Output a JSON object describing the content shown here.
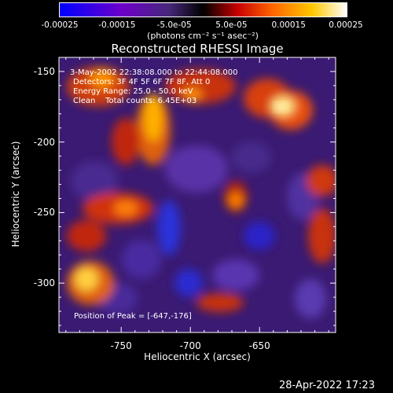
{
  "colorbar": {
    "tick_labels": [
      "-0.00025",
      "-0.00015",
      "-5.0e-05",
      "5.0e-05",
      "0.00015",
      "0.00025"
    ],
    "tick_values": [
      -0.00025,
      -0.00015,
      -5e-05,
      5e-05,
      0.00015,
      0.00025
    ],
    "range": [
      -0.00025,
      0.00025
    ],
    "units_label": "(photons cm⁻² s⁻¹ asec⁻²)"
  },
  "chart_data": {
    "type": "heatmap",
    "title": "Reconstructed RHESSI Image",
    "xlabel": "Heliocentric X (arcsec)",
    "ylabel": "Heliocentric Y (arcsec)",
    "xlim": [
      -795,
      -595
    ],
    "ylim": [
      -335,
      -140
    ],
    "x_ticks": [
      -750,
      -700,
      -650
    ],
    "x_tick_labels": [
      "-750",
      "-700",
      "-650"
    ],
    "y_ticks": [
      -150,
      -200,
      -250,
      -300
    ],
    "y_tick_labels": [
      "-150",
      "-200",
      "-250",
      "-300"
    ],
    "peak_position": [
      -647,
      -176
    ],
    "annotations": [
      "3-May-2002 22:38:08.000 to 22:44:08.000",
      "Detectors: 3F 4F 5F 6F 7F 8F, Att 0",
      "Energy Range: 25.0 - 50.0 keV",
      "Clean    Total counts: 6.45E+03",
      "Position of Peak = [-647,-176]"
    ],
    "colormap": [
      "#0000ff",
      "#6e00c8",
      "#46287a",
      "#000000",
      "#c80000",
      "#ff6400",
      "#ffc800",
      "#ffffff"
    ]
  },
  "footer": {
    "timestamp": "28-Apr-2022 17:23"
  }
}
